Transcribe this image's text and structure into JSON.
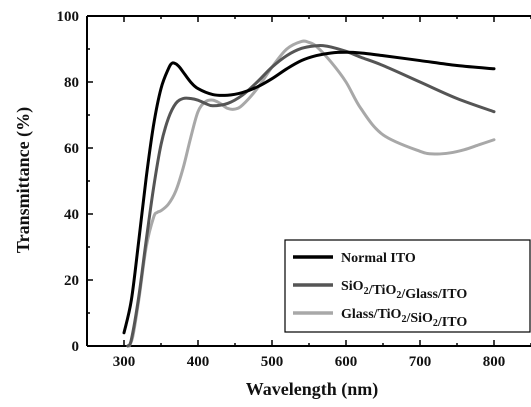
{
  "chart_data": {
    "type": "line",
    "title": "",
    "xlabel": "Wavelength (nm)",
    "ylabel": "Transmittance (%)",
    "xlim": [
      250,
      850
    ],
    "ylim": [
      0,
      100
    ],
    "xticks": [
      300,
      400,
      500,
      600,
      700,
      800
    ],
    "yticks": [
      0,
      20,
      40,
      60,
      80,
      100
    ],
    "grid": false,
    "legend_position": "bottom-right",
    "series": [
      {
        "name": "Normal ITO",
        "legend_parts": [
          {
            "t": "Normal ITO"
          }
        ],
        "color": "#000000",
        "x": [
          300,
          310,
          320,
          330,
          340,
          350,
          360,
          365,
          370,
          375,
          380,
          390,
          400,
          420,
          440,
          460,
          480,
          500,
          520,
          540,
          560,
          580,
          600,
          620,
          650,
          700,
          750,
          800
        ],
        "y": [
          4,
          14,
          32,
          51,
          67,
          78,
          84,
          85.7,
          85.5,
          84.5,
          83,
          80,
          78,
          76.2,
          76,
          76.8,
          78.5,
          81,
          84,
          86.5,
          88,
          88.8,
          89,
          88.8,
          88,
          86.5,
          85,
          84
        ]
      },
      {
        "name": "SiO2/TiO2/Glass/ITO",
        "legend_parts": [
          {
            "t": "SiO"
          },
          {
            "t": "2",
            "sub": true
          },
          {
            "t": "/TiO"
          },
          {
            "t": "2",
            "sub": true
          },
          {
            "t": "/Glass/ITO"
          }
        ],
        "color": "#555555",
        "x": [
          305,
          310,
          320,
          330,
          340,
          350,
          360,
          370,
          380,
          390,
          400,
          410,
          420,
          440,
          460,
          480,
          500,
          520,
          540,
          560,
          570,
          580,
          600,
          620,
          650,
          700,
          750,
          800
        ],
        "y": [
          0,
          2,
          15,
          32,
          48,
          61,
          69,
          73.5,
          75,
          75,
          74.5,
          73.5,
          72.8,
          73.5,
          76,
          80,
          84.5,
          88,
          90.2,
          91,
          91,
          90.6,
          89.3,
          87.5,
          85,
          80,
          75,
          71
        ]
      },
      {
        "name": "Glass/TiO2/SiO2/ITO",
        "legend_parts": [
          {
            "t": "Glass/TiO"
          },
          {
            "t": "2",
            "sub": true
          },
          {
            "t": "/SiO"
          },
          {
            "t": "2",
            "sub": true
          },
          {
            "t": "/ITO"
          }
        ],
        "color": "#a8a8a8",
        "x": [
          307,
          312,
          320,
          330,
          340,
          345,
          350,
          360,
          370,
          380,
          390,
          400,
          410,
          420,
          430,
          440,
          450,
          460,
          480,
          500,
          520,
          540,
          550,
          560,
          580,
          600,
          620,
          650,
          700,
          720,
          740,
          760,
          780,
          800
        ],
        "y": [
          0,
          3,
          14,
          30,
          39,
          40.5,
          41,
          43,
          47,
          54,
          63,
          71,
          74,
          74.5,
          73.5,
          72,
          71.8,
          73,
          78,
          84.5,
          90,
          92.3,
          92,
          90.8,
          86,
          80,
          72,
          64,
          59,
          58.2,
          58.5,
          59.5,
          61,
          62.5
        ]
      }
    ]
  }
}
